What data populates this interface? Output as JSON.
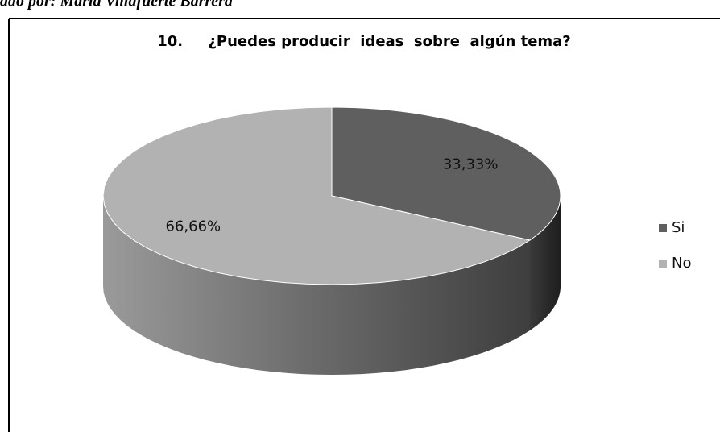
{
  "caption": "ado por: María Villafuerte Barrera",
  "chart_data": {
    "type": "pie",
    "title": "10.     ¿Puedes producir  ideas  sobre  algún tema?",
    "categories": [
      "Si",
      "No"
    ],
    "values": [
      33.33,
      66.66
    ],
    "value_labels": [
      "33,33%",
      "66,66%"
    ],
    "colors": [
      "#5f5f5f",
      "#b2b2b2"
    ],
    "legend": "right"
  }
}
